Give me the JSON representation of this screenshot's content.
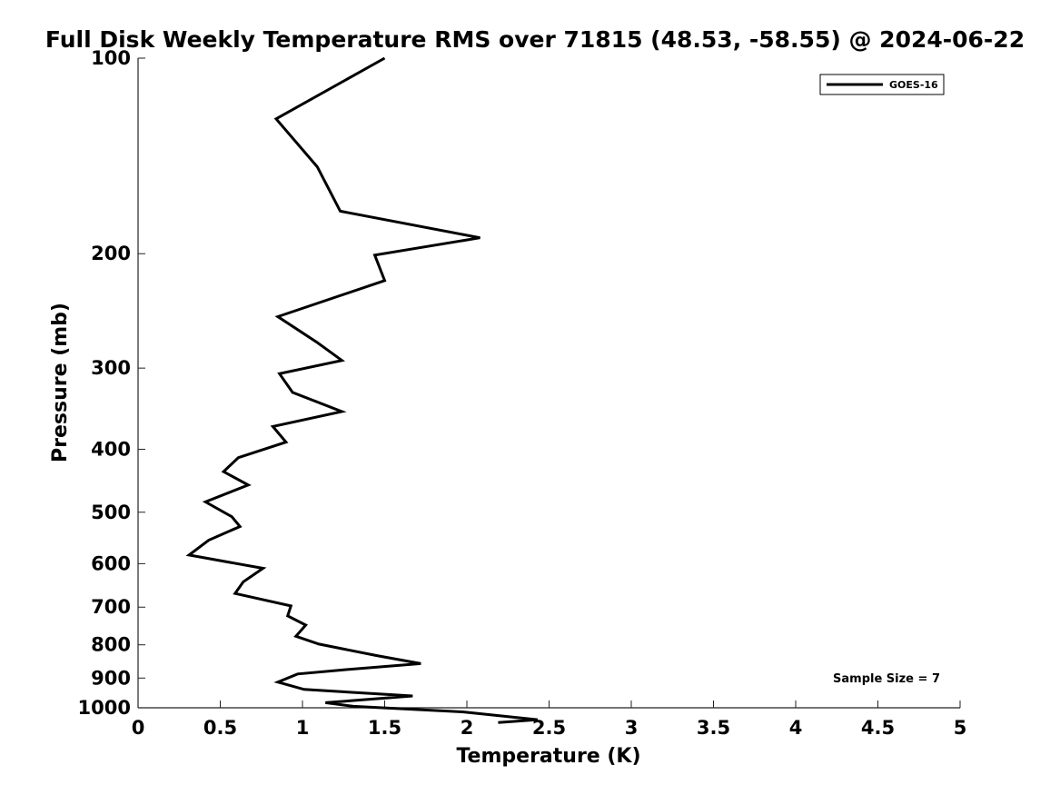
{
  "chart_data": {
    "type": "line",
    "title": "Full Disk Weekly Temperature RMS over 71815 (48.53, -58.55) @ 2024-06-22",
    "xlabel": "Temperature (K)",
    "ylabel": "Pressure (mb)",
    "xlim": [
      0,
      5
    ],
    "ylim": [
      100,
      1000
    ],
    "y_scale": "log",
    "y_reversed": true,
    "x_ticks": [
      0,
      0.5,
      1,
      1.5,
      2,
      2.5,
      3,
      3.5,
      4,
      4.5,
      5
    ],
    "x_tick_labels": [
      "0",
      "0.5",
      "1",
      "1.5",
      "2",
      "2.5",
      "3",
      "3.5",
      "4",
      "4.5",
      "5"
    ],
    "y_ticks": [
      100,
      200,
      300,
      400,
      500,
      600,
      700,
      800,
      900,
      1000
    ],
    "y_tick_labels": [
      "100",
      "200",
      "300",
      "400",
      "500",
      "600",
      "700",
      "800",
      "900",
      "1000"
    ],
    "grid": false,
    "legend_position": "top-right",
    "annotation": "Sample Size = 7",
    "series": [
      {
        "name": "GOES-16",
        "color": "#000000",
        "x": [
          1.5,
          0.84,
          1.09,
          1.23,
          2.08,
          1.44,
          1.5,
          0.85,
          1.09,
          1.24,
          0.86,
          0.94,
          1.24,
          0.82,
          0.9,
          0.61,
          0.52,
          0.67,
          0.41,
          0.57,
          0.62,
          0.43,
          0.31,
          0.76,
          0.64,
          0.59,
          0.93,
          0.91,
          1.02,
          0.96,
          1.1,
          1.45,
          1.72,
          1.25,
          0.97,
          0.85,
          1.01,
          1.67,
          1.14,
          1.31,
          1.98,
          2.43,
          2.19
        ],
        "y": [
          100,
          124,
          147,
          172,
          189,
          201,
          220,
          250,
          274,
          292,
          306,
          327,
          350,
          369,
          390,
          412,
          433,
          454,
          482,
          508,
          526,
          552,
          582,
          610,
          640,
          667,
          697,
          722,
          746,
          776,
          798,
          831,
          855,
          874,
          887,
          913,
          937,
          959,
          982,
          995,
          1015,
          1043,
          1054
        ]
      }
    ]
  }
}
